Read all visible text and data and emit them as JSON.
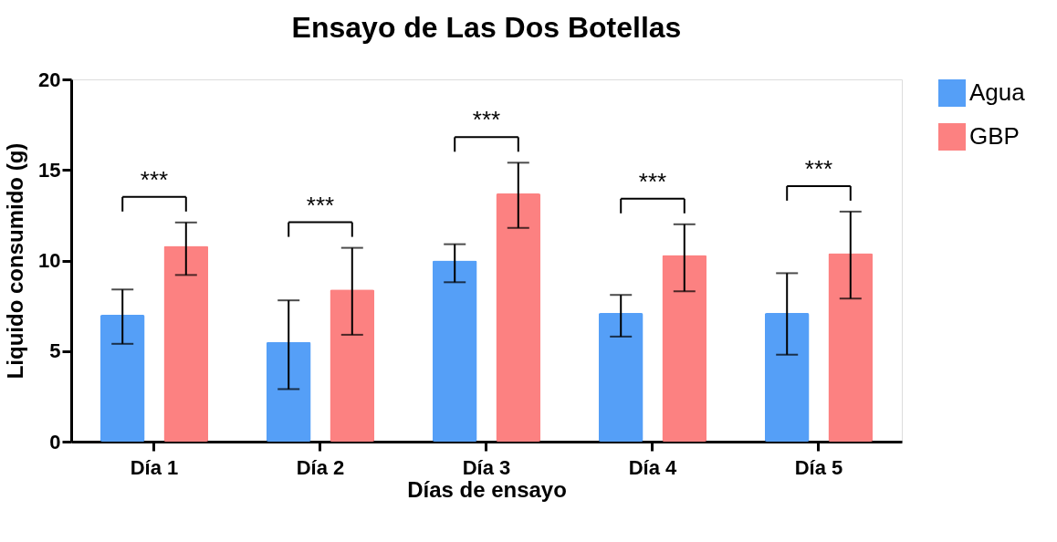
{
  "chart_data": {
    "type": "bar",
    "title": "Ensayo de Las Dos Botellas",
    "xlabel": "Días de ensayo",
    "ylabel": "Liquido consumido (g)",
    "categories": [
      "Día 1",
      "Día 2",
      "Día 3",
      "Día 4",
      "Día 5"
    ],
    "series": [
      {
        "name": "Agua",
        "color": "#559ff7",
        "values": [
          7.0,
          5.5,
          10.0,
          7.1,
          7.1
        ],
        "errors": [
          [
            5.4,
            8.4
          ],
          [
            2.9,
            7.8
          ],
          [
            8.8,
            10.9
          ],
          [
            5.8,
            8.1
          ],
          [
            4.8,
            9.3
          ]
        ]
      },
      {
        "name": "GBP",
        "color": "#fc8181",
        "values": [
          10.8,
          8.4,
          13.7,
          10.3,
          10.4
        ],
        "errors": [
          [
            9.2,
            12.1
          ],
          [
            5.9,
            10.7
          ],
          [
            11.8,
            15.4
          ],
          [
            8.3,
            12.0
          ],
          [
            7.9,
            12.7
          ]
        ]
      }
    ],
    "ylim": [
      0,
      20
    ],
    "yticks": [
      0,
      5,
      10,
      15,
      20
    ],
    "grid": false,
    "legend": "top right",
    "annotations": [
      "***",
      "***",
      "***",
      "***",
      "***"
    ]
  }
}
